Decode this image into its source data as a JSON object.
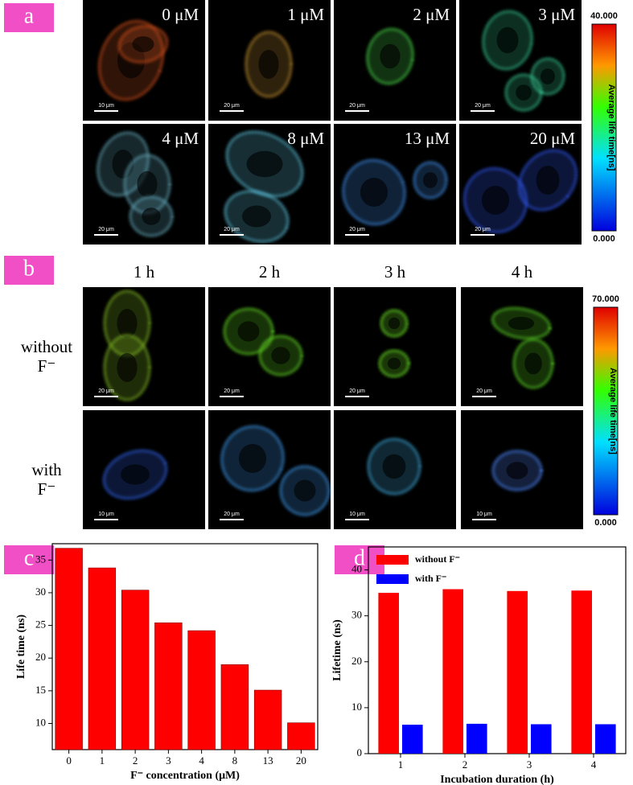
{
  "panel_a": {
    "label": "a",
    "images": [
      {
        "label": "0 μM",
        "scale_bar": "10 μm"
      },
      {
        "label": "1 μM",
        "scale_bar": "20 μm"
      },
      {
        "label": "2 μM",
        "scale_bar": "20 μm"
      },
      {
        "label": "3 μM",
        "scale_bar": "20 μm"
      },
      {
        "label": "4 μM",
        "scale_bar": "20 μm"
      },
      {
        "label": "8 μM",
        "scale_bar": "20 μm"
      },
      {
        "label": "13 μM",
        "scale_bar": "20 μm"
      },
      {
        "label": "20 μM",
        "scale_bar": "20 μm"
      }
    ],
    "colorbar": {
      "max": "40.000",
      "min": "0.000",
      "title": "Average life time[ns]"
    }
  },
  "panel_b": {
    "label": "b",
    "columns": [
      "1 h",
      "2 h",
      "3 h",
      "4 h"
    ],
    "rows": [
      {
        "label": [
          "without",
          "F⁻"
        ],
        "scale_bars": [
          "20 μm",
          "20 μm",
          "20 μm",
          "20 μm"
        ]
      },
      {
        "label": [
          "with",
          "F⁻"
        ],
        "scale_bars": [
          "10 μm",
          "20 μm",
          "10 μm",
          "10 μm"
        ]
      }
    ],
    "colorbar": {
      "max": "70.000",
      "min": "0.000",
      "title": "Average life time[ns]"
    }
  },
  "panel_c": {
    "label": "c"
  },
  "panel_d": {
    "label": "d"
  },
  "chart_data": [
    {
      "type": "bar",
      "x_label": "F⁻ concentration (μM)",
      "y_label": "Life time (ns)",
      "categories": [
        "0",
        "1",
        "2",
        "3",
        "4",
        "8",
        "13",
        "20"
      ],
      "values": [
        36.8,
        33.8,
        30.4,
        25.4,
        24.2,
        19.0,
        15.1,
        10.1
      ],
      "color": "#ff0000",
      "ylim": [
        6,
        37.5
      ],
      "yticks": [
        10,
        15,
        20,
        25,
        30,
        35
      ]
    },
    {
      "type": "bar",
      "x_label": "Incubation duration (h)",
      "y_label": "Lifetime (ns)",
      "categories": [
        "1",
        "2",
        "3",
        "4"
      ],
      "series": [
        {
          "name": "without F⁻",
          "color": "#ff0000",
          "values": [
            35.0,
            35.8,
            35.4,
            35.5
          ]
        },
        {
          "name": "with F⁻",
          "color": "#0000ff",
          "values": [
            6.3,
            6.5,
            6.4,
            6.4
          ]
        }
      ],
      "ylim": [
        0,
        45
      ],
      "yticks": [
        0,
        10,
        20,
        30,
        40
      ],
      "legend": "upper-left"
    }
  ]
}
